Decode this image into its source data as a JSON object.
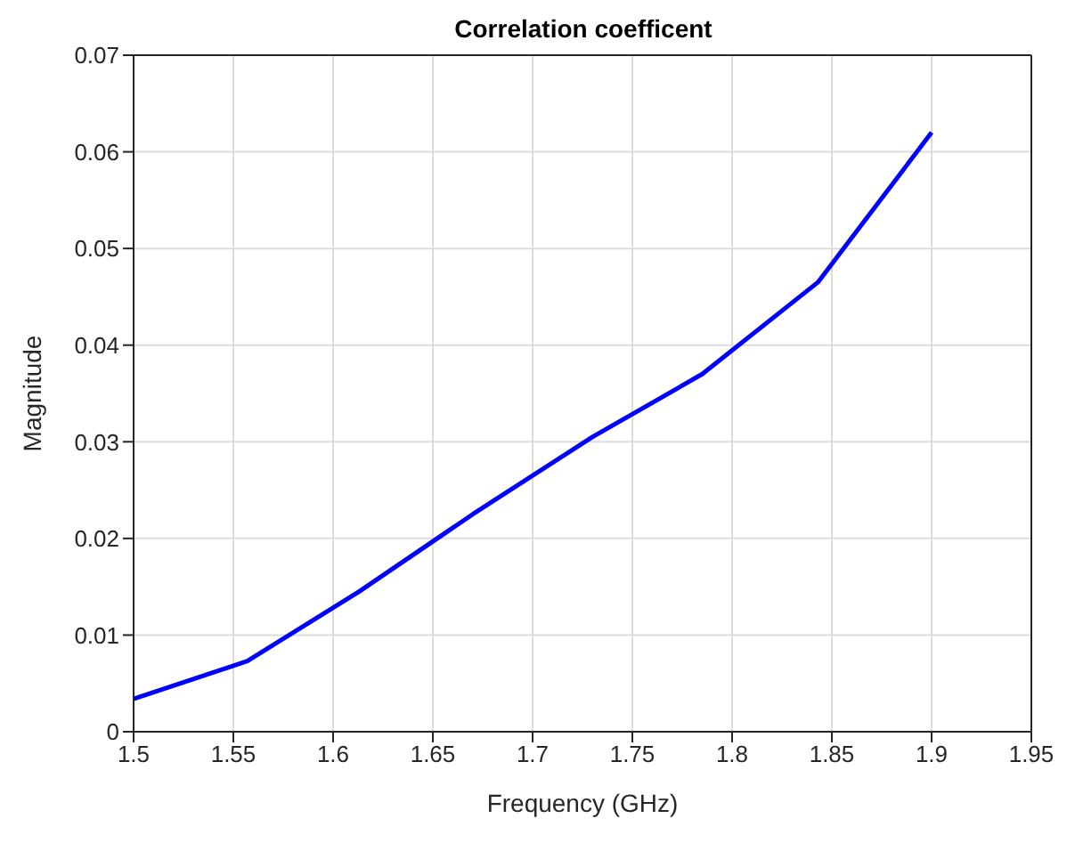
{
  "chart_data": {
    "type": "line",
    "title": "Correlation coefficent",
    "xlabel": "Frequency (GHz)",
    "ylabel": "Magnitude",
    "x": [
      1.5,
      1.557,
      1.613,
      1.67,
      1.73,
      1.785,
      1.843,
      1.9
    ],
    "series": [
      {
        "color": "#0000ff",
        "values": [
          0.0034,
          0.0073,
          0.0145,
          0.0225,
          0.0305,
          0.037,
          0.0465,
          0.062
        ]
      }
    ],
    "xlim": [
      1.5,
      1.95
    ],
    "xticks": [
      1.5,
      1.55,
      1.6,
      1.65,
      1.7,
      1.75,
      1.8,
      1.85,
      1.9,
      1.95
    ],
    "ylim": [
      0,
      0.07
    ],
    "yticks": [
      0,
      0.01,
      0.02,
      0.03,
      0.04,
      0.05,
      0.06,
      0.07
    ],
    "grid": true,
    "marker": "none",
    "line_style": "solid"
  }
}
